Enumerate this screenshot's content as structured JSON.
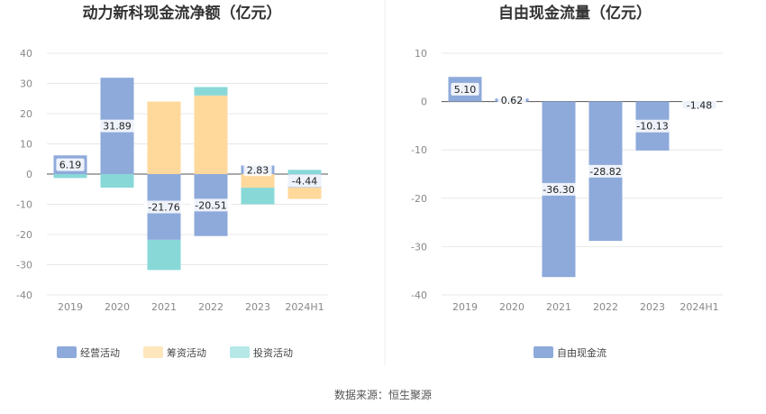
{
  "chart_data": [
    {
      "type": "bar",
      "stacked": true,
      "title": "动力新科现金流净额（亿元）",
      "categories": [
        "2019",
        "2020",
        "2021",
        "2022",
        "2023",
        "2024H1"
      ],
      "ylim": [
        -40,
        40
      ],
      "yticks": [
        40,
        30,
        20,
        10,
        0,
        -10,
        -20,
        -30,
        -40
      ],
      "legend_position": "bottom",
      "series": [
        {
          "name": "经营活动",
          "color": "#8eaadb",
          "values": [
            6.19,
            31.89,
            -21.76,
            -20.51,
            2.83,
            -4.44
          ],
          "labels": [
            "6.19",
            "31.89",
            "-21.76",
            "-20.51",
            "2.83",
            "-4.44"
          ]
        },
        {
          "name": "筹资活动",
          "color": "#ffd99c",
          "values": [
            0,
            0,
            24.0,
            26.0,
            -4.5,
            -3.8
          ]
        },
        {
          "name": "投资活动",
          "color": "#89d8d8",
          "values": [
            -1.3,
            -4.5,
            -10.0,
            2.8,
            -5.5,
            1.4
          ]
        }
      ]
    },
    {
      "type": "bar",
      "title": "自由现金流量（亿元）",
      "categories": [
        "2019",
        "2020",
        "2021",
        "2022",
        "2023",
        "2024H1"
      ],
      "ylim": [
        -40,
        10
      ],
      "yticks": [
        10,
        0,
        -10,
        -20,
        -30,
        -40
      ],
      "legend_position": "bottom",
      "series": [
        {
          "name": "自由现金流",
          "color": "#8eaadb",
          "values": [
            5.1,
            0.62,
            -36.3,
            -28.82,
            -10.13,
            -1.48
          ],
          "labels": [
            "5.10",
            "0.62",
            "-36.30",
            "-28.82",
            "-10.13",
            "-1.48"
          ]
        }
      ]
    }
  ],
  "footer": {
    "source": "数据来源：恒生聚源"
  }
}
